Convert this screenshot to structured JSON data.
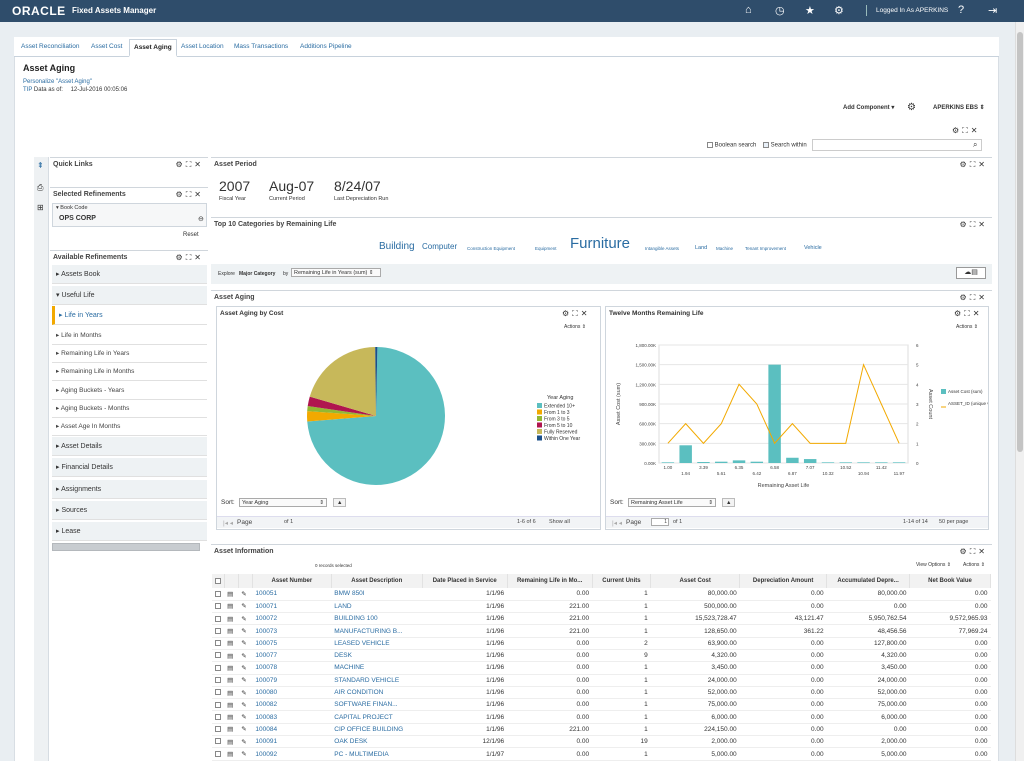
{
  "header": {
    "logo": "ORACLE",
    "app_name": "Fixed Assets Manager",
    "user": "Logged In As APERKINS"
  },
  "tabs": [
    "Asset Reconciliation",
    "Asset Cost",
    "Asset Aging",
    "Asset Location",
    "Mass Transactions",
    "Additions Pipeline"
  ],
  "page": {
    "title": "Asset Aging",
    "personalize": "Personalize \"Asset Aging\"",
    "tip": "TIP",
    "data_as_of_label": "Data as of:",
    "data_as_of": "12-Jul-2016 00:05:06",
    "add_component": "Add Component",
    "profile": "APERKINS EBS"
  },
  "search": {
    "boolean": "Boolean search",
    "within": "Search within"
  },
  "quick_links": {
    "title": "Quick Links"
  },
  "selected_refinements": {
    "title": "Selected Refinements",
    "label": "Book Code",
    "value": "OPS CORP",
    "reset": "Reset"
  },
  "available_refinements": {
    "title": "Available Refinements",
    "items": [
      "Assets Book",
      "Useful Life",
      "Life in Years",
      "Life in Months",
      "Remaining Life in Years",
      "Remaining Life in Months",
      "Aging Buckets - Years",
      "Aging Buckets - Months",
      "Asset Age In Months",
      "Asset Details",
      "Financial Details",
      "Assignments",
      "Sources",
      "Lease"
    ]
  },
  "asset_period": {
    "title": "Asset Period",
    "fiscal_year": "2007",
    "fiscal_year_label": "Fiscal Year",
    "period": "Aug-07",
    "period_label": "Current Period",
    "last_dep": "8/24/07",
    "last_dep_label": "Last Depreciation Run"
  },
  "top10": {
    "title": "Top 10 Categories by Remaining Life",
    "tags": [
      "Building",
      "Computer",
      "Construction Equipment",
      "Equipment",
      "Furniture",
      "Intangible Assets",
      "Land",
      "Machine",
      "Tenant Improvement",
      "Vehicle"
    ],
    "explore": "Explore",
    "explore_by": "Major Category",
    "by": "by",
    "sel": "Remaining Life in Years (sum)"
  },
  "asset_aging": {
    "title": "Asset Aging"
  },
  "cost_chart": {
    "title": "Asset Aging by Cost",
    "actions": "Actions",
    "sort": "Sort:",
    "sort_value": "Year Aging",
    "pager": {
      "page": "Page",
      "of": "of 1",
      "range": "1-6 of 6",
      "show_all": "Show all"
    }
  },
  "life_chart": {
    "title": "Twelve Months Remaining Life",
    "actions": "Actions",
    "sort": "Sort:",
    "sort_value": "Remaining Asset Life",
    "pager": {
      "page": "Page",
      "page_num": "1",
      "of": "of 1",
      "range": "1-14 of 14",
      "per_page": "50 per page"
    }
  },
  "info": {
    "title": "Asset Information",
    "records": "0 records selected",
    "view_options": "View Options",
    "actions": "Actions",
    "columns": [
      "Asset Number",
      "Asset Description",
      "Date Placed in Service",
      "Remaining Life in Mo...",
      "Current Units",
      "Asset Cost",
      "Depreciation Amount",
      "Accumulated Depre...",
      "Net Book Value"
    ],
    "rows": [
      [
        "100051",
        "BMW 850I",
        "1/1/96",
        "0.00",
        "1",
        "80,000.00",
        "0.00",
        "80,000.00",
        "0.00"
      ],
      [
        "100071",
        "LAND",
        "1/1/96",
        "221.00",
        "1",
        "500,000.00",
        "0.00",
        "0.00",
        "0.00"
      ],
      [
        "100072",
        "BUILDING 100",
        "1/1/96",
        "221.00",
        "1",
        "15,523,728.47",
        "43,121.47",
        "5,950,762.54",
        "9,572,965.93"
      ],
      [
        "100073",
        "MANUFACTURING B...",
        "1/1/96",
        "221.00",
        "1",
        "128,650.00",
        "361.22",
        "48,456.56",
        "77,969.24"
      ],
      [
        "100075",
        "LEASED VEHICLE",
        "1/1/96",
        "0.00",
        "2",
        "63,900.00",
        "0.00",
        "127,800.00",
        "0.00"
      ],
      [
        "100077",
        "DESK",
        "1/1/96",
        "0.00",
        "9",
        "4,320.00",
        "0.00",
        "4,320.00",
        "0.00"
      ],
      [
        "100078",
        "MACHINE",
        "1/1/96",
        "0.00",
        "1",
        "3,450.00",
        "0.00",
        "3,450.00",
        "0.00"
      ],
      [
        "100079",
        "STANDARD VEHICLE",
        "1/1/96",
        "0.00",
        "1",
        "24,000.00",
        "0.00",
        "24,000.00",
        "0.00"
      ],
      [
        "100080",
        "AIR CONDITION",
        "1/1/96",
        "0.00",
        "1",
        "52,000.00",
        "0.00",
        "52,000.00",
        "0.00"
      ],
      [
        "100082",
        "SOFTWARE FINAN...",
        "1/1/96",
        "0.00",
        "1",
        "75,000.00",
        "0.00",
        "75,000.00",
        "0.00"
      ],
      [
        "100083",
        "CAPITAL PROJECT",
        "1/1/96",
        "0.00",
        "1",
        "6,000.00",
        "0.00",
        "6,000.00",
        "0.00"
      ],
      [
        "100084",
        "CIP OFFICE BUILDING",
        "1/1/96",
        "221.00",
        "1",
        "224,150.00",
        "0.00",
        "0.00",
        "0.00"
      ],
      [
        "100091",
        "OAK DESK",
        "12/1/96",
        "0.00",
        "19",
        "2,000.00",
        "0.00",
        "2,000.00",
        "0.00"
      ],
      [
        "100092",
        "PC - MULTIMEDIA",
        "1/1/97",
        "0.00",
        "1",
        "5,000.00",
        "0.00",
        "5,000.00",
        "0.00"
      ]
    ]
  },
  "chart_data": [
    {
      "type": "pie",
      "title": "Asset Aging by Cost",
      "legend_title": "Year Aging",
      "legend": "right",
      "slices": [
        {
          "name": "Extended 10+",
          "value": 73.4,
          "color": "#5bbfc0"
        },
        {
          "name": "From 1 to 3",
          "value": 2.4,
          "color": "#f2a900"
        },
        {
          "name": "From 3 to 5",
          "value": 1.2,
          "color": "#93b833"
        },
        {
          "name": "From 5 to 10",
          "value": 2.2,
          "color": "#b0154f"
        },
        {
          "name": "Fully Reserved",
          "value": 20.3,
          "color": "#c7b85a"
        },
        {
          "name": "Within One Year",
          "value": 0.5,
          "color": "#1b4f8a"
        }
      ]
    },
    {
      "type": "bar+line",
      "title": "Twelve Months Remaining Life",
      "xlabel": "Remaining Asset Life",
      "ylabel": "Asset Cost (sum)",
      "y2label": "Asset Count",
      "categories": [
        "1.00",
        "1.94",
        "3.39",
        "5.61",
        "6.35",
        "6.42",
        "6.58",
        "6.87",
        "7.07",
        "10.32",
        "10.52",
        "10.94",
        "11.42",
        "11.97"
      ],
      "ylim": [
        0,
        1800000
      ],
      "y_ticks": [
        "0.00K",
        "300.00K",
        "600.00K",
        "900.00K",
        "1,200.00K",
        "1,500.00K",
        "1,800.00K"
      ],
      "y2lim": [
        0,
        6
      ],
      "y2_ticks": [
        "0",
        "1",
        "2",
        "3",
        "4",
        "5",
        "6"
      ],
      "series": [
        {
          "name": "Asset Cost (sum)",
          "type": "bar",
          "color": "#5bbfc0",
          "values": [
            10000,
            270000,
            15000,
            20000,
            40000,
            20000,
            1500000,
            80000,
            60000,
            10000,
            10000,
            10000,
            10000,
            10000
          ]
        },
        {
          "name": "ASSET_ID (unique values)",
          "type": "line",
          "color": "#f2a900",
          "values": [
            1,
            2,
            1,
            2,
            4,
            3,
            1,
            2,
            1,
            1,
            1,
            5,
            3,
            1
          ]
        }
      ]
    }
  ]
}
